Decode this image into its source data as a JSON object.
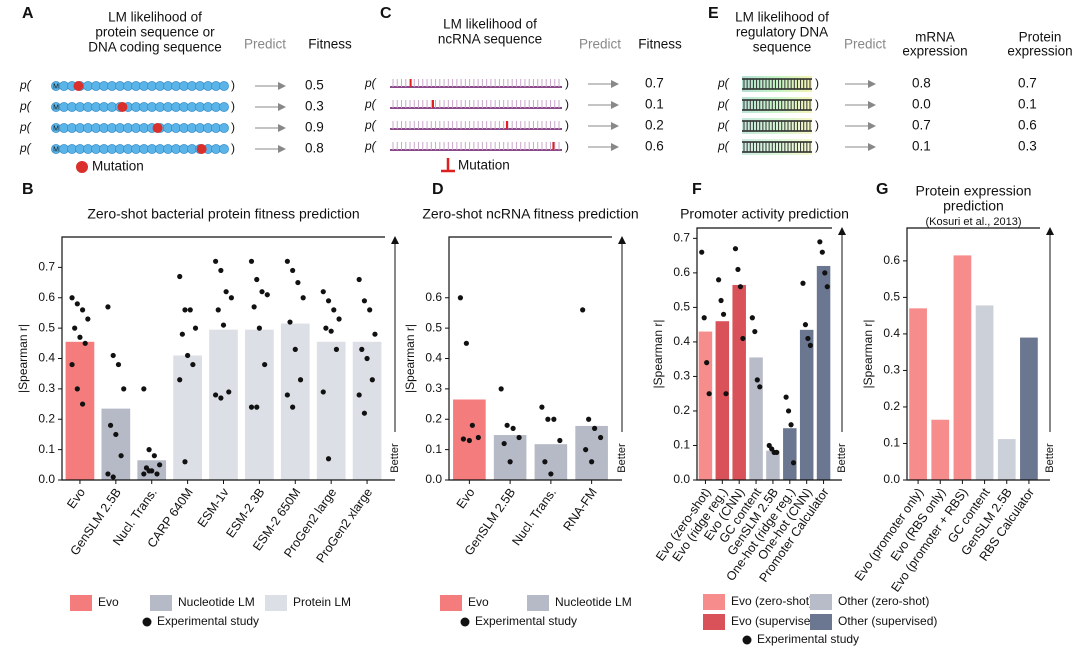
{
  "schematics": [
    {
      "panel": "A",
      "title": [
        "LM likelihood of",
        "protein sequence or",
        "DNA coding sequence"
      ],
      "predict": "Predict",
      "outputs": [
        [
          "Fitness"
        ]
      ],
      "prefix": "p(",
      "suffix": ")",
      "start_label": "M",
      "rows": [
        [
          "0.5"
        ],
        [
          "0.3"
        ],
        [
          "0.9"
        ],
        [
          "0.8"
        ]
      ],
      "legend": "Mutation"
    },
    {
      "panel": "C",
      "title": [
        "LM likelihood of",
        "ncRNA sequence"
      ],
      "predict": "Predict",
      "outputs": [
        [
          "Fitness"
        ]
      ],
      "prefix": "p(",
      "suffix": ")",
      "rows": [
        [
          "0.7"
        ],
        [
          "0.1"
        ],
        [
          "0.2"
        ],
        [
          "0.6"
        ]
      ],
      "legend": "Mutation"
    },
    {
      "panel": "E",
      "title": [
        "LM likelihood of",
        "regulatory DNA",
        "sequence"
      ],
      "predict": "Predict",
      "outputs": [
        [
          "mRNA",
          "expression"
        ],
        [
          "Protein",
          "expression"
        ]
      ],
      "prefix": "p(",
      "suffix": ")",
      "rows": [
        [
          "0.8",
          "0.7"
        ],
        [
          "0.0",
          "0.1"
        ],
        [
          "0.7",
          "0.6"
        ],
        [
          "0.1",
          "0.3"
        ]
      ]
    }
  ],
  "chart_data": [
    {
      "type": "bar",
      "panel": "B",
      "title": [
        "Zero-shot bacterial protein fitness prediction"
      ],
      "ylabel": "|Spearman r|",
      "direction_label": "Better",
      "categories": [
        "Evo",
        "GenSLM 2.5B",
        "Nucl. Trans.",
        "CARP 640M",
        "ESM-1v",
        "ESM-2 3B",
        "ESM-2 650M",
        "ProGen2 large",
        "ProGen2 xlarge"
      ],
      "values": [
        0.455,
        0.235,
        0.065,
        0.41,
        0.495,
        0.495,
        0.515,
        0.455,
        0.455
      ],
      "colors": [
        "#f47c7c",
        "#b6bac6",
        "#b6bac6",
        "#dcdfe5",
        "#dcdfe5",
        "#dcdfe5",
        "#dcdfe5",
        "#dcdfe5",
        "#dcdfe5"
      ],
      "points": [
        [
          0.6,
          0.58,
          0.56,
          0.53,
          0.5,
          0.47,
          0.45,
          0.38,
          0.3,
          0.25
        ],
        [
          0.57,
          0.41,
          0.38,
          0.3,
          0.18,
          0.15,
          0.08,
          0.02,
          0.01
        ],
        [
          0.3,
          0.1,
          0.08,
          0.05,
          0.04,
          0.03,
          0.02,
          0.02,
          0.03
        ],
        [
          0.67,
          0.56,
          0.56,
          0.5,
          0.48,
          0.41,
          0.38,
          0.33,
          0.06
        ],
        [
          0.72,
          0.69,
          0.62,
          0.6,
          0.56,
          0.51,
          0.29,
          0.28,
          0.27
        ],
        [
          0.72,
          0.66,
          0.62,
          0.61,
          0.57,
          0.5,
          0.38,
          0.24,
          0.24
        ],
        [
          0.72,
          0.69,
          0.65,
          0.6,
          0.52,
          0.43,
          0.33,
          0.28,
          0.24
        ],
        [
          0.62,
          0.59,
          0.56,
          0.53,
          0.5,
          0.49,
          0.43,
          0.29,
          0.07
        ],
        [
          0.66,
          0.59,
          0.56,
          0.48,
          0.43,
          0.4,
          0.33,
          0.28,
          0.22
        ]
      ],
      "point_color": "#111111",
      "ylim": [
        0,
        0.8
      ],
      "yticks": [
        {
          "value": 0,
          "label": "0.0"
        },
        0.1,
        0.2,
        0.3,
        0.4,
        0.5,
        0.6,
        0.7
      ],
      "legend": [
        {
          "name": "Evo",
          "color": "#f47c7c"
        },
        {
          "name": "Nucleotide LM",
          "color": "#b6bac6"
        },
        {
          "name": "Protein LM",
          "color": "#dcdfe5"
        },
        {
          "name": "Experimental study",
          "color": "#111111",
          "marker": "dot"
        }
      ]
    },
    {
      "type": "bar",
      "panel": "D",
      "title": [
        "Zero-shot ncRNA fitness prediction"
      ],
      "ylabel": "|Spearman r|",
      "direction_label": "Better",
      "categories": [
        "Evo",
        "GenSLM 2.5B",
        "Nucl. Trans.",
        "RNA-FM"
      ],
      "values": [
        0.265,
        0.148,
        0.118,
        0.178
      ],
      "colors": [
        "#f47c7c",
        "#b6bac6",
        "#b6bac6",
        "#b6bac6"
      ],
      "points": [
        [
          0.6,
          0.45,
          0.18,
          0.14,
          0.135,
          0.13
        ],
        [
          0.3,
          0.18,
          0.17,
          0.14,
          0.12,
          0.06
        ],
        [
          0.24,
          0.2,
          0.2,
          0.13,
          0.06,
          0.02
        ],
        [
          0.56,
          0.2,
          0.17,
          0.14,
          0.1,
          0.06
        ]
      ],
      "point_color": "#111111",
      "ylim": [
        0,
        0.8
      ],
      "yticks": [
        {
          "value": 0,
          "label": "0.0"
        },
        0.1,
        0.2,
        0.3,
        0.4,
        0.5,
        0.6
      ],
      "legend": [
        {
          "name": "Evo",
          "color": "#f47c7c"
        },
        {
          "name": "Nucleotide LM",
          "color": "#b6bac6"
        },
        {
          "name": "Experimental study",
          "color": "#111111",
          "marker": "dot"
        }
      ]
    },
    {
      "type": "bar",
      "panel": "F",
      "title": [
        "Promoter activity prediction"
      ],
      "ylabel": "|Spearman r|",
      "direction_label": "Better",
      "categories": [
        "Evo (zero-shot)",
        "Evo (ridge reg.)",
        "Evo (CNN)",
        "GC content",
        "GenSLM 2.5B",
        "One-hot (ridge reg.)",
        "One-hot (CNN)",
        "Promoter Calculator"
      ],
      "values": [
        0.43,
        0.46,
        0.565,
        0.355,
        0.085,
        0.15,
        0.435,
        0.62
      ],
      "colors": [
        "#f78c8c",
        "#d9525a",
        "#d9525a",
        "#b8bcc8",
        "#b8bcc8",
        "#6b7690",
        "#6b7690",
        "#6b7690"
      ],
      "points": [
        [
          0.66,
          0.47,
          0.34,
          0.25
        ],
        [
          0.58,
          0.52,
          0.48,
          0.25
        ],
        [
          0.67,
          0.61,
          0.56,
          0.41
        ],
        [
          0.47,
          0.43,
          0.29,
          0.27
        ],
        [
          0.1,
          0.09,
          0.08,
          0.08
        ],
        [
          0.24,
          0.2,
          0.16,
          0.05
        ],
        [
          0.57,
          0.45,
          0.41,
          0.39
        ],
        [
          0.69,
          0.66,
          0.6,
          0.56
        ]
      ],
      "point_color": "#111111",
      "ylim": [
        0,
        0.73
      ],
      "yticks": [
        {
          "value": 0,
          "label": "0.0"
        },
        0.1,
        0.2,
        0.3,
        0.4,
        0.5,
        0.6,
        0.7
      ],
      "legend": [
        {
          "name": "Evo (zero-shot)",
          "color": "#f78c8c"
        },
        {
          "name": "Other (zero-shot)",
          "color": "#b8bcc8"
        },
        {
          "name": "Evo (supervised)",
          "color": "#d9525a"
        },
        {
          "name": "Other (supervised)",
          "color": "#6b7690"
        },
        {
          "name": "Experimental study",
          "color": "#111111",
          "marker": "dot"
        }
      ]
    },
    {
      "type": "bar",
      "panel": "G",
      "title": [
        "Protein expression",
        "prediction"
      ],
      "subtitle": "(Kosuri et al., 2013)",
      "ylabel": "|Spearman r|",
      "direction_label": "Better",
      "categories": [
        "Evo (promoter only)",
        "Evo (RBS only)",
        "Evo (promoter + RBS)",
        "GC content",
        "GenSLM 2.5B",
        "RBS Calculator"
      ],
      "values": [
        0.47,
        0.165,
        0.615,
        0.478,
        0.112,
        0.39
      ],
      "colors": [
        "#f78c8c",
        "#f78c8c",
        "#f78c8c",
        "#ccd0d8",
        "#ccd0d8",
        "#6b7690"
      ],
      "ylim": [
        0,
        0.69
      ],
      "yticks": [
        {
          "value": 0,
          "label": "0.0"
        },
        0.1,
        0.2,
        0.3,
        0.4,
        0.5,
        0.6
      ]
    }
  ]
}
